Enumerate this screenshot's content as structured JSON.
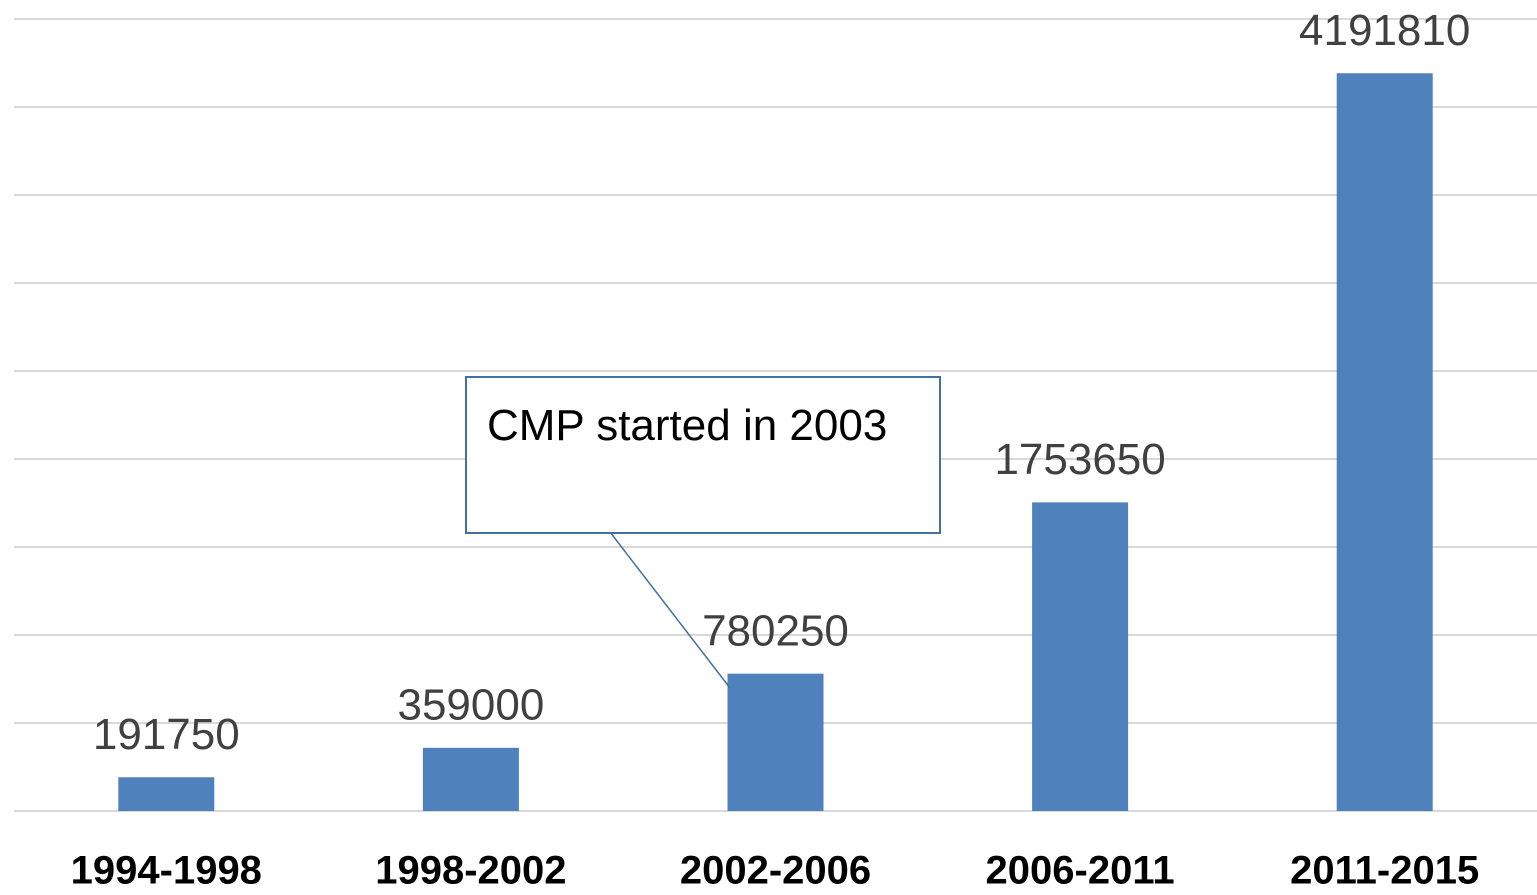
{
  "chart_data": {
    "type": "bar",
    "categories": [
      "1994-1998",
      "1998-2002",
      "2002-2006",
      "2006-2011",
      "2011-2015"
    ],
    "values": [
      191750,
      359000,
      780250,
      1753650,
      4191810
    ],
    "color": "#4f81bd",
    "ylim": [
      0,
      4500000
    ],
    "yticks": [
      0,
      500000,
      1000000,
      1500000,
      2000000,
      2500000,
      3000000,
      3500000,
      4000000,
      4500000
    ],
    "grid": true,
    "annotation": "CMP started in 2003"
  }
}
